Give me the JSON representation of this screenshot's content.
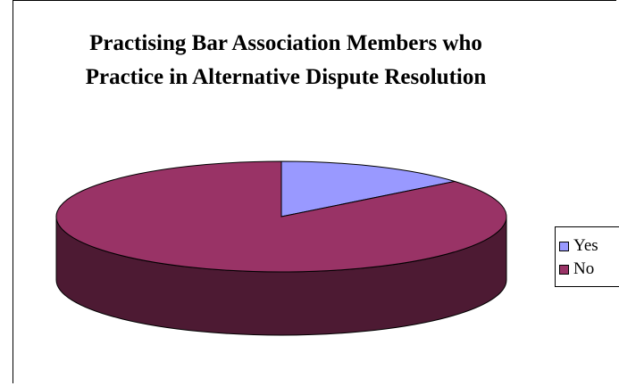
{
  "chart_data": {
    "type": "pie",
    "style": "3d",
    "title": "Practising Bar Association Members who Practice in Alternative Dispute Resolution",
    "title_lines": [
      "Practising Bar Association Members who",
      "Practice in Alternative Dispute Resolution"
    ],
    "categories": [
      "Yes",
      "No"
    ],
    "values": [
      14,
      86
    ],
    "colors": [
      "#9999ff",
      "#993366"
    ],
    "side_color": "#4d1a33",
    "legend": {
      "placement": "right",
      "entries": [
        "Yes",
        "No"
      ]
    }
  }
}
